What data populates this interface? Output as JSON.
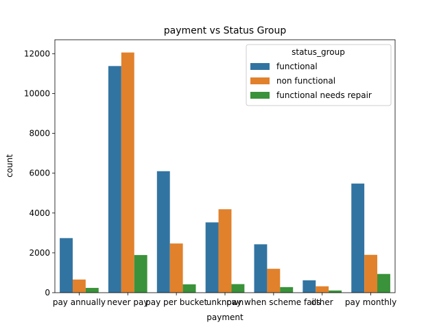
{
  "chart_data": {
    "type": "bar",
    "title": "payment vs Status Group",
    "xlabel": "payment",
    "ylabel": "count",
    "ylim": [
      0,
      12700
    ],
    "yticks": [
      0,
      2000,
      4000,
      6000,
      8000,
      10000,
      12000
    ],
    "grid": false,
    "legend": {
      "title": "status_group",
      "placement": "top-right"
    },
    "categories": [
      "pay annually",
      "never pay",
      "pay per bucket",
      "unknown",
      "pay when scheme fails",
      "other",
      "pay monthly"
    ],
    "series": [
      {
        "name": "functional",
        "color": "#3274a1",
        "values": [
          2740,
          11380,
          6100,
          3530,
          2430,
          620,
          5480
        ]
      },
      {
        "name": "non functional",
        "color": "#e1812c",
        "values": [
          660,
          12060,
          2470,
          4190,
          1200,
          320,
          1900
        ]
      },
      {
        "name": "functional needs repair",
        "color": "#3a923a",
        "values": [
          240,
          1890,
          420,
          430,
          280,
          110,
          940
        ]
      }
    ]
  }
}
